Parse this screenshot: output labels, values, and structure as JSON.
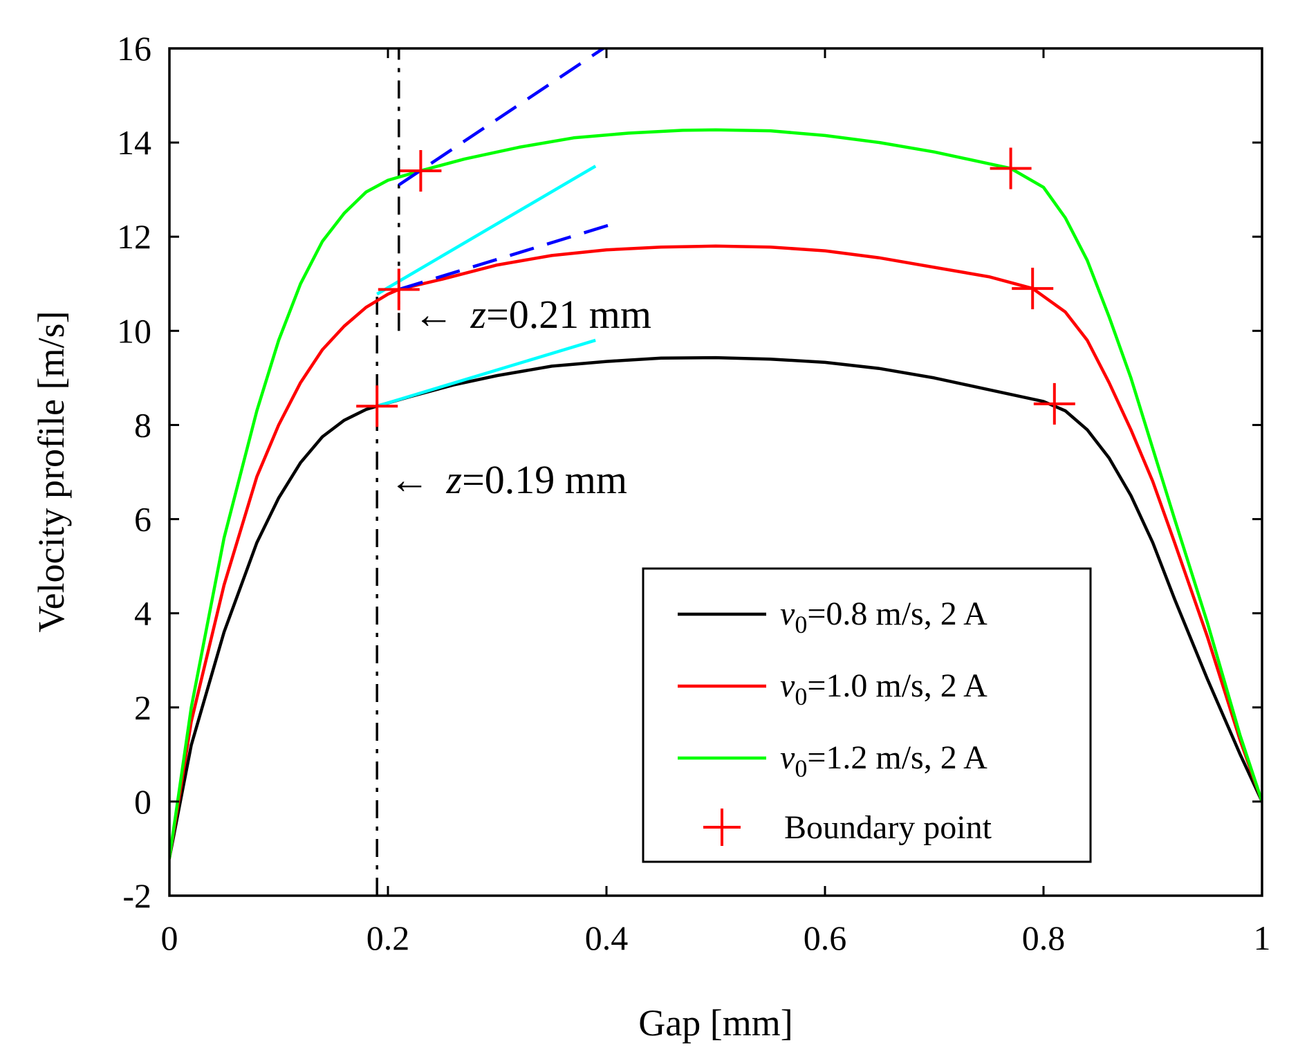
{
  "chart_data": {
    "type": "line",
    "xlabel": "Gap [mm]",
    "ylabel": "Velocity profile [m/s]",
    "xlim": [
      0,
      1
    ],
    "ylim": [
      -2,
      16
    ],
    "xticks": [
      0,
      0.2,
      0.4,
      0.6,
      0.8,
      1
    ],
    "xtick_labels": [
      "0",
      "0.2",
      "0.4",
      "0.6",
      "0.8",
      "1"
    ],
    "yticks": [
      -2,
      0,
      2,
      4,
      6,
      8,
      10,
      12,
      14,
      16
    ],
    "ytick_labels": [
      "-2",
      "0",
      "2",
      "4",
      "6",
      "8",
      "10",
      "12",
      "14",
      "16"
    ],
    "grid": false,
    "legend_position": "bottom-right",
    "series": [
      {
        "name": "v0=0.8 m/s, 2 A",
        "legend_symbol": "v",
        "legend_subscript": "0",
        "legend_text": "=0.8 m/s, 2 A",
        "color": "#000000",
        "x": [
          0,
          0.02,
          0.05,
          0.08,
          0.1,
          0.12,
          0.14,
          0.16,
          0.18,
          0.19,
          0.22,
          0.26,
          0.3,
          0.35,
          0.4,
          0.45,
          0.5,
          0.55,
          0.6,
          0.65,
          0.7,
          0.75,
          0.8,
          0.82,
          0.84,
          0.86,
          0.88,
          0.9,
          0.92,
          0.95,
          0.98,
          1.0
        ],
        "y": [
          -1.2,
          1.2,
          3.6,
          5.5,
          6.45,
          7.2,
          7.75,
          8.1,
          8.33,
          8.4,
          8.6,
          8.85,
          9.05,
          9.25,
          9.35,
          9.42,
          9.43,
          9.4,
          9.33,
          9.2,
          9.0,
          8.75,
          8.5,
          8.3,
          7.9,
          7.3,
          6.5,
          5.5,
          4.3,
          2.6,
          1.0,
          0.0
        ]
      },
      {
        "name": "v0=1.0 m/s, 2 A",
        "legend_symbol": "v",
        "legend_subscript": "0",
        "legend_text": "=1.0 m/s, 2 A",
        "color": "#ff0000",
        "x": [
          0,
          0.02,
          0.05,
          0.08,
          0.1,
          0.12,
          0.14,
          0.16,
          0.18,
          0.2,
          0.21,
          0.25,
          0.3,
          0.35,
          0.4,
          0.45,
          0.5,
          0.55,
          0.6,
          0.65,
          0.7,
          0.75,
          0.79,
          0.82,
          0.84,
          0.86,
          0.88,
          0.9,
          0.92,
          0.95,
          0.98,
          1.0
        ],
        "y": [
          -1.2,
          1.7,
          4.6,
          6.9,
          8.0,
          8.9,
          9.6,
          10.1,
          10.5,
          10.78,
          10.88,
          11.1,
          11.4,
          11.6,
          11.72,
          11.78,
          11.8,
          11.78,
          11.7,
          11.55,
          11.35,
          11.15,
          10.9,
          10.4,
          9.8,
          8.9,
          7.9,
          6.8,
          5.5,
          3.5,
          1.3,
          0.0
        ]
      },
      {
        "name": "v0=1.2 m/s, 2 A",
        "legend_symbol": "v",
        "legend_subscript": "0",
        "legend_text": "=1.2 m/s, 2 A",
        "color": "#00ff00",
        "x": [
          0,
          0.02,
          0.05,
          0.08,
          0.1,
          0.12,
          0.14,
          0.16,
          0.18,
          0.2,
          0.23,
          0.27,
          0.32,
          0.37,
          0.42,
          0.47,
          0.5,
          0.55,
          0.6,
          0.65,
          0.7,
          0.75,
          0.77,
          0.8,
          0.82,
          0.84,
          0.86,
          0.88,
          0.9,
          0.92,
          0.95,
          0.98,
          1.0
        ],
        "y": [
          -1.2,
          2.0,
          5.6,
          8.3,
          9.8,
          11.0,
          11.9,
          12.5,
          12.95,
          13.2,
          13.4,
          13.65,
          13.9,
          14.1,
          14.2,
          14.26,
          14.27,
          14.25,
          14.15,
          14.0,
          13.8,
          13.55,
          13.45,
          13.05,
          12.4,
          11.5,
          10.3,
          9.0,
          7.5,
          6.0,
          3.8,
          1.4,
          0.0
        ]
      }
    ],
    "boundary_points": {
      "name": "Boundary point",
      "color": "#ff0000",
      "x": [
        0.19,
        0.21,
        0.23,
        0.77,
        0.79,
        0.81
      ],
      "y": [
        8.4,
        10.88,
        13.4,
        13.45,
        10.9,
        8.45
      ]
    },
    "tangent_lines": [
      {
        "color": "#00ffff",
        "style": "solid",
        "x": [
          0.19,
          0.39
        ],
        "y": [
          8.4,
          9.8
        ]
      },
      {
        "color": "#00ffff",
        "style": "solid",
        "x": [
          0.19,
          0.39
        ],
        "y": [
          10.78,
          13.5
        ]
      },
      {
        "color": "#0000ff",
        "style": "dashed",
        "x": [
          0.21,
          0.41
        ],
        "y": [
          10.88,
          12.3
        ]
      },
      {
        "color": "#0000ff",
        "style": "dashed",
        "x": [
          0.21,
          0.41
        ],
        "y": [
          13.1,
          16.2
        ]
      }
    ],
    "reference_lines": [
      {
        "color": "#000000",
        "style": "dashdot",
        "x": 0.19,
        "y_range": [
          -2,
          10.8
        ]
      },
      {
        "color": "#000000",
        "style": "dashdot",
        "x": 0.21,
        "y_range": [
          10.0,
          16
        ]
      }
    ],
    "annotations": [
      {
        "arrow": "←",
        "var": "z",
        "text": "=0.21 mm",
        "x": 0.225,
        "y": 10.3
      },
      {
        "arrow": "←",
        "var": "z",
        "text": "=0.19 mm",
        "x": 0.2,
        "y": 6.8
      }
    ]
  }
}
